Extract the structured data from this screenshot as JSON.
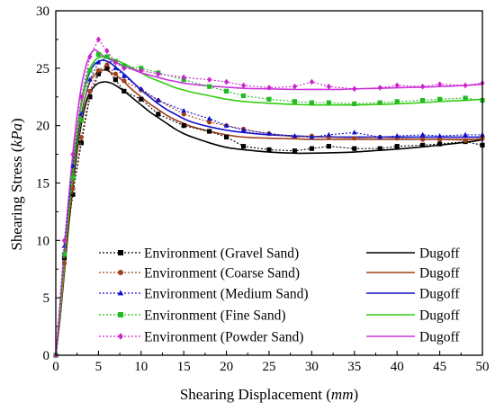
{
  "chart_data": {
    "type": "line",
    "xlabel": {
      "main": "Shearing Displacement",
      "unit": "mm"
    },
    "ylabel": {
      "main": "Shearing Stress",
      "unit": "kPa"
    },
    "xlim": [
      0,
      50
    ],
    "ylim": [
      0,
      30
    ],
    "xticks": [
      0,
      5,
      10,
      15,
      20,
      25,
      30,
      35,
      40,
      45,
      50
    ],
    "yticks": [
      0,
      5,
      10,
      15,
      20,
      25,
      30
    ],
    "grid": false,
    "legend_position": "bottom-left",
    "x": [
      0,
      1,
      2,
      3,
      4,
      5,
      6,
      7,
      8,
      10,
      12,
      15,
      18,
      20,
      22,
      25,
      28,
      30,
      32,
      35,
      38,
      40,
      43,
      45,
      48,
      50
    ],
    "series": [
      {
        "name": "Environment (Gravel Sand)",
        "kind": "measured",
        "color": "#000000",
        "marker": "square",
        "dash": "dotted",
        "values": [
          0,
          8.5,
          14,
          18.5,
          22.5,
          24.5,
          25,
          24,
          23,
          22.3,
          21,
          20,
          19.5,
          19,
          18.2,
          17.9,
          17.8,
          18,
          18.2,
          18,
          18,
          18.2,
          18.3,
          18.4,
          18.6,
          18.3
        ]
      },
      {
        "name": "Environment (Coarse Sand)",
        "kind": "measured",
        "color": "#a0411b",
        "marker": "circle",
        "dash": "dotted",
        "values": [
          0,
          8,
          14.5,
          19,
          23,
          24.8,
          25.3,
          24.5,
          23.9,
          23.1,
          22.2,
          21,
          20.3,
          20,
          19.7,
          19.3,
          19,
          19.1,
          19,
          18.9,
          19,
          18.9,
          18.8,
          18.8,
          18.7,
          18.9
        ]
      },
      {
        "name": "Environment (Medium Sand)",
        "kind": "measured",
        "color": "#1010cc",
        "marker": "triangle",
        "dash": "dotted",
        "values": [
          0,
          9.5,
          16.5,
          21,
          24,
          25.5,
          26,
          25,
          24.3,
          23.2,
          22.2,
          21.3,
          20.6,
          20,
          19.6,
          19.3,
          19.1,
          19,
          19.2,
          19.4,
          19,
          19.1,
          19.2,
          19.1,
          19.2,
          19.2
        ]
      },
      {
        "name": "Environment (Fine Sand)",
        "kind": "measured",
        "color": "#22bb22",
        "marker": "square",
        "dash": "dotted",
        "values": [
          0,
          8.8,
          15.5,
          20.5,
          24.8,
          26.2,
          26,
          25.6,
          25.2,
          25,
          24.6,
          24,
          23.4,
          23,
          22.6,
          22.3,
          22.1,
          22,
          22,
          21.9,
          22,
          22.1,
          22.2,
          22.3,
          22.4,
          22.2
        ]
      },
      {
        "name": "Environment (Powder Sand)",
        "kind": "measured",
        "color": "#cc22cc",
        "marker": "diamond",
        "dash": "dotted",
        "values": [
          0,
          10,
          17.5,
          22.5,
          26,
          27.5,
          26.5,
          25.5,
          25,
          24.8,
          24.5,
          24.2,
          24,
          23.8,
          23.5,
          23.3,
          23.4,
          23.8,
          23.4,
          23.2,
          23.3,
          23.5,
          23.4,
          23.6,
          23.5,
          23.7
        ]
      }
    ],
    "model_x": [
      0,
      0.5,
      1,
      1.5,
      2,
      2.5,
      3,
      3.5,
      4,
      4.5,
      5,
      5.5,
      6,
      6.5,
      7,
      8,
      9,
      10,
      11,
      12,
      13,
      14,
      15,
      16,
      18,
      20,
      22,
      25,
      28,
      30,
      33,
      35,
      38,
      40,
      43,
      45,
      48,
      50
    ],
    "model_series": [
      {
        "name": "Dugoff",
        "color": "#000000",
        "values": [
          0,
          3.2,
          7.2,
          11.2,
          14.8,
          17.8,
          20.2,
          21.9,
          22.9,
          23.4,
          23.7,
          23.8,
          23.8,
          23.7,
          23.5,
          23,
          22.4,
          21.8,
          21.2,
          20.7,
          20.2,
          19.7,
          19.3,
          19,
          18.5,
          18.1,
          17.9,
          17.7,
          17.6,
          17.6,
          17.65,
          17.7,
          17.85,
          17.95,
          18.15,
          18.3,
          18.55,
          18.75
        ]
      },
      {
        "name": "Dugoff",
        "color": "#a0411b",
        "values": [
          0,
          3.4,
          7.5,
          11.6,
          15.3,
          18.4,
          20.9,
          22.7,
          23.8,
          24.4,
          24.7,
          24.85,
          24.8,
          24.6,
          24.4,
          23.8,
          23.1,
          22.5,
          21.9,
          21.4,
          20.9,
          20.5,
          20.2,
          19.9,
          19.5,
          19.2,
          19.0,
          18.9,
          18.85,
          18.8,
          18.8,
          18.8,
          18.8,
          18.8,
          18.8,
          18.8,
          18.8,
          18.8
        ]
      },
      {
        "name": "Dugoff",
        "color": "#1111cc",
        "values": [
          0,
          3.8,
          8.3,
          12.6,
          16.4,
          19.5,
          21.9,
          23.6,
          24.7,
          25.3,
          25.6,
          25.7,
          25.6,
          25.4,
          25.1,
          24.5,
          23.8,
          23.1,
          22.5,
          21.9,
          21.4,
          21.0,
          20.6,
          20.3,
          19.9,
          19.6,
          19.4,
          19.2,
          19.1,
          19.05,
          19.0,
          19.0,
          19.0,
          19.0,
          19.0,
          19.0,
          19.0,
          19.0
        ]
      },
      {
        "name": "Dugoff",
        "color": "#33cc11",
        "values": [
          0,
          3.6,
          8.0,
          12.3,
          16.2,
          19.4,
          22.0,
          23.8,
          25.0,
          25.6,
          25.9,
          26.0,
          25.95,
          25.8,
          25.7,
          25.4,
          25.0,
          24.6,
          24.2,
          23.9,
          23.6,
          23.3,
          23.1,
          22.9,
          22.6,
          22.3,
          22.1,
          21.95,
          21.85,
          21.8,
          21.8,
          21.8,
          21.85,
          21.9,
          22.0,
          22.1,
          22.2,
          22.3
        ]
      },
      {
        "name": "Dugoff",
        "color": "#cc33dd",
        "values": [
          0,
          4.2,
          9.0,
          13.6,
          17.6,
          20.9,
          23.4,
          25.1,
          26.1,
          26.6,
          26.4,
          26.1,
          25.9,
          25.7,
          25.5,
          25.2,
          24.9,
          24.6,
          24.4,
          24.2,
          24.0,
          23.85,
          23.7,
          23.6,
          23.45,
          23.35,
          23.25,
          23.2,
          23.15,
          23.15,
          23.15,
          23.2,
          23.25,
          23.3,
          23.35,
          23.4,
          23.5,
          23.6
        ]
      }
    ]
  }
}
